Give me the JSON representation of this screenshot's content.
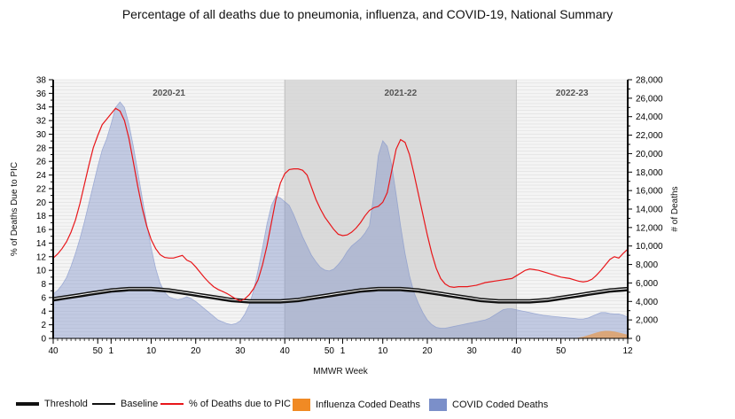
{
  "chart_data": {
    "type": "area",
    "title": "Percentage of all deaths due to pneumonia, influenza, and COVID-19, National Summary",
    "xlabel": "MMWR Week",
    "ylabel_left": "% of Deaths Due to PIC",
    "ylabel_right": "# of Deaths",
    "ylim_left": [
      0,
      38
    ],
    "ylim_right": [
      0,
      28000
    ],
    "y_ticks_left": [
      0,
      2,
      4,
      6,
      8,
      10,
      12,
      14,
      16,
      18,
      20,
      22,
      24,
      26,
      28,
      30,
      32,
      34,
      36,
      38
    ],
    "y_ticks_right": [
      "0",
      "2,000",
      "4,000",
      "6,000",
      "8,000",
      "10,000",
      "12,000",
      "14,000",
      "16,000",
      "18,000",
      "20,000",
      "22,000",
      "24,000",
      "26,000",
      "28,000"
    ],
    "x_ticks": [
      "40",
      "50",
      "1",
      "10",
      "20",
      "30",
      "40",
      "50",
      "1",
      "10",
      "20",
      "30",
      "40",
      "50",
      "12"
    ],
    "seasons": [
      {
        "label": "2020-21",
        "shaded": false
      },
      {
        "label": "2021-22",
        "shaded": true
      },
      {
        "label": "2022-23",
        "shaded": false
      }
    ],
    "weeks_count": 130,
    "series": [
      {
        "name": "% of Deaths due to PIC",
        "axis": "left",
        "values": [
          11.8,
          12.4,
          13.2,
          14.2,
          15.6,
          17.4,
          19.8,
          22.6,
          25.4,
          28.0,
          29.8,
          31.4,
          32.2,
          33.0,
          33.8,
          33.4,
          32.0,
          29.4,
          25.9,
          22.3,
          19.1,
          16.5,
          14.5,
          13.2,
          12.3,
          11.9,
          11.8,
          11.8,
          12.0,
          12.2,
          11.5,
          11.2,
          10.5,
          9.7,
          8.9,
          8.2,
          7.6,
          7.2,
          6.9,
          6.6,
          6.2,
          5.8,
          5.5,
          5.8,
          6.4,
          7.3,
          8.6,
          10.8,
          13.6,
          17.0,
          20.4,
          22.8,
          24.2,
          24.8,
          24.9,
          24.9,
          24.7,
          24.0,
          22.2,
          20.4,
          19.0,
          17.8,
          16.9,
          16.0,
          15.3,
          15.1,
          15.2,
          15.6,
          16.2,
          17.0,
          18.0,
          18.8,
          19.2,
          19.4,
          20.0,
          21.4,
          24.6,
          27.8,
          29.2,
          28.8,
          27.0,
          24.2,
          21.2,
          18.2,
          15.2,
          12.5,
          10.3,
          8.8,
          8.0,
          7.6,
          7.5,
          7.6,
          7.6,
          7.6,
          7.7,
          7.8,
          8.0,
          8.2,
          8.3,
          8.4,
          8.5,
          8.6,
          8.7,
          8.8,
          9.2,
          9.6,
          10.0,
          10.2,
          10.1,
          10.0,
          9.8,
          9.6,
          9.4,
          9.2,
          9.0,
          8.9,
          8.8,
          8.6,
          8.4,
          8.3,
          8.4,
          8.7,
          9.3,
          10.0,
          10.8,
          11.6,
          12.0,
          11.8,
          12.5,
          13.1
        ]
      },
      {
        "name": "COVID Coded Deaths",
        "axis": "right",
        "values": [
          4800,
          5200,
          5800,
          6600,
          7800,
          9200,
          10800,
          12600,
          14600,
          16600,
          18600,
          20400,
          21600,
          23200,
          25000,
          25600,
          25000,
          23200,
          20800,
          18000,
          15200,
          12400,
          9800,
          7600,
          6000,
          5000,
          4500,
          4300,
          4200,
          4300,
          4500,
          4300,
          4000,
          3600,
          3200,
          2800,
          2400,
          2000,
          1800,
          1600,
          1500,
          1600,
          1900,
          2600,
          3600,
          5200,
          7400,
          9800,
          12400,
          14400,
          15400,
          15200,
          14800,
          14400,
          13400,
          12200,
          11000,
          10000,
          9000,
          8300,
          7700,
          7400,
          7300,
          7500,
          8000,
          8600,
          9400,
          10000,
          10400,
          10800,
          11400,
          12200,
          15600,
          19800,
          21400,
          20800,
          18800,
          15600,
          12200,
          9200,
          6800,
          5000,
          3800,
          2800,
          2000,
          1500,
          1200,
          1100,
          1100,
          1200,
          1300,
          1400,
          1500,
          1600,
          1700,
          1800,
          1900,
          2000,
          2200,
          2500,
          2800,
          3100,
          3200,
          3200,
          3100,
          3000,
          2900,
          2800,
          2700,
          2600,
          2500,
          2450,
          2400,
          2350,
          2300,
          2250,
          2200,
          2150,
          2100,
          2100,
          2200,
          2400,
          2600,
          2800,
          2800,
          2700,
          2650,
          2650,
          2500,
          2300
        ]
      },
      {
        "name": "Influenza Coded Deaths",
        "axis": "right",
        "values": [
          0,
          0,
          0,
          0,
          0,
          0,
          0,
          0,
          0,
          0,
          0,
          0,
          0,
          0,
          0,
          0,
          0,
          0,
          0,
          0,
          0,
          0,
          0,
          0,
          0,
          0,
          0,
          0,
          0,
          0,
          0,
          0,
          0,
          0,
          0,
          0,
          0,
          0,
          0,
          0,
          0,
          0,
          0,
          0,
          0,
          0,
          0,
          0,
          0,
          0,
          0,
          0,
          0,
          0,
          0,
          0,
          0,
          0,
          0,
          0,
          0,
          0,
          0,
          0,
          0,
          0,
          0,
          0,
          0,
          0,
          0,
          0,
          0,
          0,
          0,
          0,
          0,
          0,
          0,
          0,
          0,
          0,
          0,
          0,
          0,
          0,
          0,
          0,
          0,
          0,
          0,
          0,
          0,
          0,
          0,
          0,
          0,
          0,
          0,
          0,
          0,
          0,
          0,
          0,
          0,
          0,
          0,
          0,
          0,
          0,
          0,
          0,
          0,
          0,
          0,
          0,
          0,
          0,
          80,
          180,
          320,
          480,
          640,
          760,
          820,
          800,
          740,
          640,
          520,
          400
        ]
      },
      {
        "name": "Baseline",
        "axis": "left",
        "values": [
          5.5,
          5.6,
          5.7,
          5.8,
          5.9,
          6.0,
          6.1,
          6.2,
          6.3,
          6.4,
          6.5,
          6.6,
          6.7,
          6.8,
          6.85,
          6.9,
          6.95,
          7.0,
          7.0,
          7.0,
          7.0,
          7.0,
          7.0,
          6.95,
          6.9,
          6.85,
          6.8,
          6.7,
          6.6,
          6.5,
          6.4,
          6.3,
          6.2,
          6.1,
          6.0,
          5.9,
          5.8,
          5.7,
          5.6,
          5.5,
          5.4,
          5.35,
          5.3,
          5.25,
          5.2,
          5.2,
          5.2,
          5.2,
          5.2,
          5.2,
          5.2,
          5.2,
          5.25,
          5.3,
          5.35,
          5.4,
          5.5,
          5.6,
          5.7,
          5.8,
          5.9,
          6.0,
          6.1,
          6.2,
          6.3,
          6.4,
          6.5,
          6.6,
          6.7,
          6.8,
          6.85,
          6.9,
          6.95,
          7.0,
          7.0,
          7.0,
          7.0,
          7.0,
          7.0,
          6.95,
          6.9,
          6.85,
          6.8,
          6.7,
          6.6,
          6.5,
          6.4,
          6.3,
          6.2,
          6.1,
          6.0,
          5.9,
          5.8,
          5.7,
          5.6,
          5.5,
          5.4,
          5.35,
          5.3,
          5.25,
          5.2,
          5.2,
          5.2,
          5.2,
          5.2,
          5.2,
          5.2,
          5.2,
          5.25,
          5.3,
          5.35,
          5.4,
          5.5,
          5.6,
          5.7,
          5.8,
          5.9,
          6.0,
          6.1,
          6.2,
          6.3,
          6.4,
          6.5,
          6.6,
          6.7,
          6.8,
          6.85,
          6.9,
          6.95,
          7.0
        ]
      },
      {
        "name": "Threshold",
        "axis": "left",
        "values": [
          5.8,
          5.9,
          6.0,
          6.1,
          6.2,
          6.3,
          6.4,
          6.5,
          6.6,
          6.7,
          6.8,
          6.9,
          7.0,
          7.1,
          7.15,
          7.2,
          7.25,
          7.3,
          7.3,
          7.3,
          7.3,
          7.3,
          7.3,
          7.25,
          7.2,
          7.15,
          7.1,
          7.0,
          6.9,
          6.8,
          6.7,
          6.6,
          6.5,
          6.4,
          6.3,
          6.2,
          6.1,
          6.0,
          5.9,
          5.8,
          5.7,
          5.65,
          5.6,
          5.55,
          5.5,
          5.5,
          5.5,
          5.5,
          5.5,
          5.5,
          5.5,
          5.5,
          5.55,
          5.6,
          5.65,
          5.7,
          5.8,
          5.9,
          6.0,
          6.1,
          6.2,
          6.3,
          6.4,
          6.5,
          6.6,
          6.7,
          6.8,
          6.9,
          7.0,
          7.1,
          7.15,
          7.2,
          7.25,
          7.3,
          7.3,
          7.3,
          7.3,
          7.3,
          7.3,
          7.25,
          7.2,
          7.15,
          7.1,
          7.0,
          6.9,
          6.8,
          6.7,
          6.6,
          6.5,
          6.4,
          6.3,
          6.2,
          6.1,
          6.0,
          5.9,
          5.8,
          5.7,
          5.65,
          5.6,
          5.55,
          5.5,
          5.5,
          5.5,
          5.5,
          5.5,
          5.5,
          5.5,
          5.5,
          5.55,
          5.6,
          5.65,
          5.7,
          5.8,
          5.9,
          6.0,
          6.1,
          6.2,
          6.3,
          6.4,
          6.5,
          6.6,
          6.7,
          6.8,
          6.9,
          7.0,
          7.1,
          7.15,
          7.2,
          7.25,
          7.3
        ]
      }
    ],
    "colors": {
      "pic_line": "#e8161a",
      "covid_fill": "#7b8fc9",
      "flu_fill": "#f08a24",
      "baseline": "#111111",
      "threshold": "#111111",
      "shade": "#d5d5d5"
    }
  },
  "legend": [
    {
      "label": "Threshold",
      "kind": "thick-line",
      "color": "#111111"
    },
    {
      "label": "Baseline",
      "kind": "line",
      "color": "#111111"
    },
    {
      "label": "% of Deaths due to PIC",
      "kind": "line",
      "color": "#e8161a"
    },
    {
      "label": "Influenza Coded Deaths",
      "kind": "box",
      "color": "#f08a24"
    },
    {
      "label": "COVID Coded Deaths",
      "kind": "box",
      "color": "#7b8fc9"
    }
  ]
}
